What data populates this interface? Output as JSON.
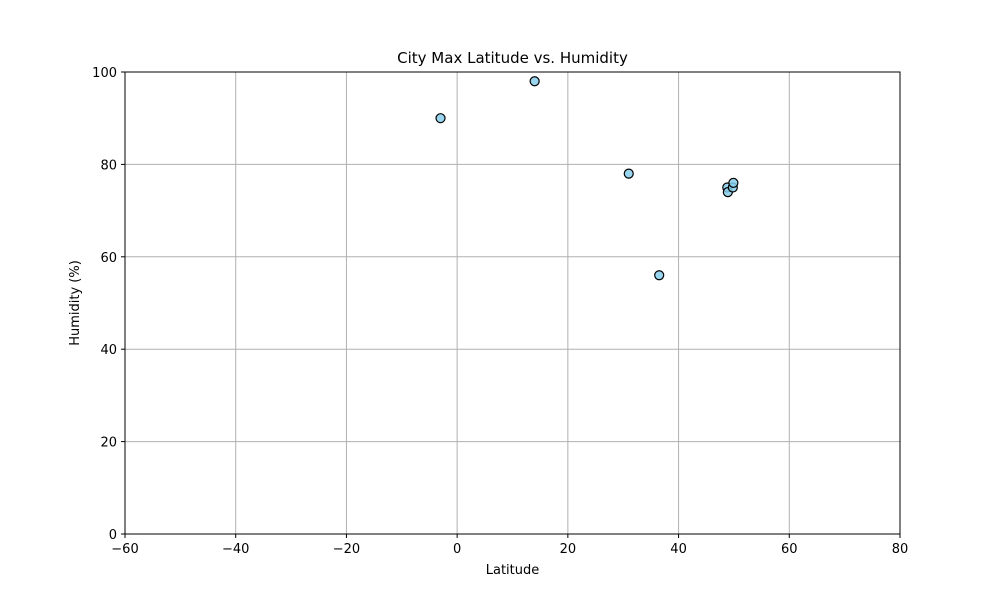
{
  "chart_data": {
    "type": "scatter",
    "title": "City Max Latitude vs. Humidity",
    "xlabel": "Latitude",
    "ylabel": "Humidity (%)",
    "xlim": [
      -60,
      80
    ],
    "ylim": [
      0,
      100
    ],
    "xticks": [
      -60,
      -40,
      -20,
      0,
      20,
      40,
      60,
      80
    ],
    "yticks": [
      0,
      20,
      40,
      60,
      80,
      100
    ],
    "xtick_labels": [
      "−60",
      "−40",
      "−20",
      "0",
      "20",
      "40",
      "60",
      "80"
    ],
    "ytick_labels": [
      "0",
      "20",
      "40",
      "60",
      "80",
      "100"
    ],
    "grid": true,
    "marker_fill": "#87ceeb",
    "marker_edge": "#000000",
    "points": [
      {
        "x": -3,
        "y": 90
      },
      {
        "x": 14,
        "y": 98
      },
      {
        "x": 31,
        "y": 78
      },
      {
        "x": 36.5,
        "y": 56
      },
      {
        "x": 48.8,
        "y": 75
      },
      {
        "x": 48.9,
        "y": 74
      },
      {
        "x": 49.8,
        "y": 75
      },
      {
        "x": 49.9,
        "y": 76
      }
    ]
  }
}
